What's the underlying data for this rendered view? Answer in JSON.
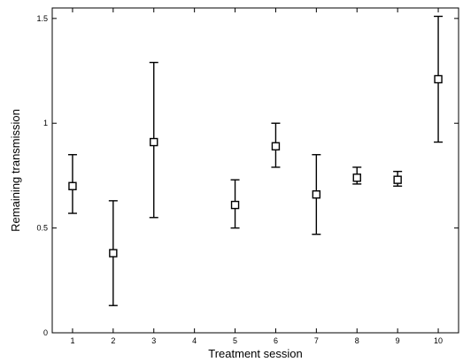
{
  "chart_data": {
    "type": "scatter",
    "xlabel": "Treatment session",
    "ylabel": "Remaining transmission",
    "xlim": [
      0.5,
      10.5
    ],
    "ylim": [
      0,
      1.55
    ],
    "x_ticks": [
      1,
      2,
      3,
      4,
      5,
      6,
      7,
      8,
      9,
      10
    ],
    "y_ticks": [
      0,
      0.5,
      1,
      1.5
    ],
    "x_tick_labels": [
      "1",
      "2",
      "3",
      "4",
      "5",
      "6",
      "7",
      "8",
      "9",
      "10"
    ],
    "y_tick_labels": [
      "0",
      "0.5",
      "1",
      "1.5"
    ],
    "grid": false,
    "marker": "open-square",
    "error_bars": true,
    "series": [
      {
        "points": [
          {
            "x": 1,
            "y": 0.7,
            "low": 0.57,
            "high": 0.85
          },
          {
            "x": 2,
            "y": 0.38,
            "low": 0.13,
            "high": 0.63
          },
          {
            "x": 3,
            "y": 0.91,
            "low": 0.55,
            "high": 1.29
          },
          {
            "x": 5,
            "y": 0.61,
            "low": 0.5,
            "high": 0.73
          },
          {
            "x": 6,
            "y": 0.89,
            "low": 0.79,
            "high": 1.0
          },
          {
            "x": 7,
            "y": 0.66,
            "low": 0.47,
            "high": 0.85
          },
          {
            "x": 8,
            "y": 0.74,
            "low": 0.71,
            "high": 0.79
          },
          {
            "x": 9,
            "y": 0.73,
            "low": 0.7,
            "high": 0.77
          },
          {
            "x": 10,
            "y": 1.21,
            "low": 0.91,
            "high": 1.51
          }
        ]
      }
    ]
  }
}
